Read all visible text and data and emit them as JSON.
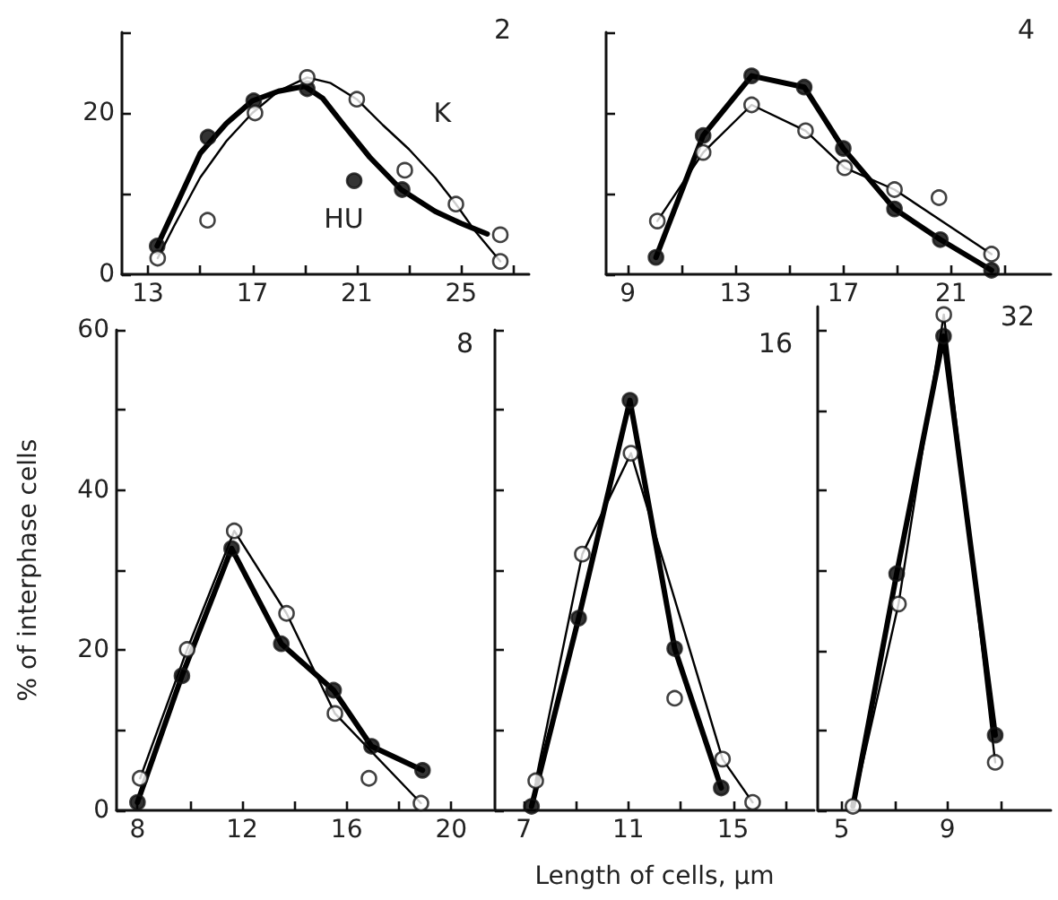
{
  "chart_data": [
    {
      "type": "scatter",
      "title": "2",
      "xlim": [
        12,
        27.6
      ],
      "xticks": [
        13,
        {
          "value": 15,
          "label": null
        },
        17,
        {
          "value": 19,
          "label": null
        },
        21,
        {
          "value": 23,
          "label": null
        },
        25,
        {
          "value": 27,
          "label": null
        }
      ],
      "ylim": [
        0,
        30
      ],
      "yticks": [
        0,
        {
          "value": 10,
          "label": null
        },
        20,
        {
          "value": 30,
          "label": null
        }
      ],
      "series": [
        {
          "name": "HU",
          "type": "line",
          "marker": "none",
          "color": "#000000",
          "x": [
            13.35,
            14,
            15,
            16,
            17,
            18,
            19,
            19.7,
            20.5,
            21.5,
            22.7,
            24,
            25,
            26
          ],
          "values": [
            3.5,
            8,
            15,
            18.7,
            21.5,
            22.7,
            23.3,
            21.8,
            18.5,
            14.5,
            10.5,
            7.8,
            6.3,
            5
          ]
        },
        {
          "name": "K",
          "type": "line",
          "marker": "none",
          "color": "#000000",
          "x": [
            13.37,
            14,
            15,
            16,
            17,
            18,
            19.1,
            20,
            21,
            22,
            23,
            24,
            24.8,
            25.5,
            26.5
          ],
          "values": [
            2,
            6,
            12,
            16.5,
            20,
            22.7,
            24.4,
            23.7,
            21.7,
            18.5,
            15.5,
            12,
            8.7,
            5.5,
            1.6
          ]
        },
        {
          "marker": "circle",
          "color": "#000000",
          "x": [
            13.35,
            15.3,
            17.05,
            19.1,
            20.9,
            22.74
          ],
          "values": [
            3.5,
            17,
            21.5,
            23,
            11.6,
            10.5
          ]
        },
        {
          "marker": "circle",
          "color": "#ffffff",
          "x": [
            13.37,
            15.28,
            17.1,
            19.1,
            21,
            22.84,
            24.8,
            26.5,
            26.5
          ],
          "values": [
            2,
            6.7,
            20,
            24.4,
            21.7,
            12.9,
            8.7,
            4.9,
            1.6
          ]
        }
      ]
    },
    {
      "type": "scatter",
      "title": "4",
      "tick_labels": "x",
      "xlim": [
        8.2,
        24.7
      ],
      "xticks": [
        9,
        {
          "value": 11,
          "label": null
        },
        13,
        {
          "value": 15,
          "label": null
        },
        17,
        {
          "value": 19,
          "label": null
        },
        21,
        {
          "value": 23,
          "label": null
        }
      ],
      "ylim": [
        0,
        30
      ],
      "yticks": [
        0,
        10,
        20,
        30
      ],
      "series": [
        {
          "type": "line",
          "marker": "none",
          "color": "#000000",
          "x": [
            10.05,
            11.8,
            13.6,
            15.55,
            17,
            18.9,
            20.6,
            22.5
          ],
          "values": [
            2.1,
            17.2,
            24.6,
            23.2,
            15.6,
            8.1,
            4.3,
            0.5
          ]
        },
        {
          "type": "line",
          "marker": "none",
          "color": "#000000",
          "x": [
            10.1,
            11.8,
            13.6,
            15.6,
            17.05,
            18.9,
            22.5
          ],
          "values": [
            6.6,
            15.1,
            21,
            17.8,
            13.2,
            10.5,
            2.5
          ]
        },
        {
          "marker": "circle",
          "color": "#000000",
          "x": [
            10.05,
            11.8,
            13.6,
            15.55,
            17,
            18.9,
            20.6,
            22.5
          ],
          "values": [
            2.1,
            17.2,
            24.6,
            23.2,
            15.6,
            8.1,
            4.3,
            0.5
          ]
        },
        {
          "marker": "circle",
          "color": "#ffffff",
          "x": [
            10.1,
            11.8,
            13.6,
            15.6,
            17.05,
            18.9,
            20.55,
            22.5
          ],
          "values": [
            6.6,
            15.1,
            21,
            17.8,
            13.2,
            10.5,
            9.5,
            2.5
          ]
        }
      ]
    },
    {
      "type": "scatter",
      "title": "8",
      "ylabel": "% of interphase cells",
      "xlim": [
        7.2,
        21.6
      ],
      "xticks": [
        8,
        {
          "value": 10,
          "label": null
        },
        12,
        {
          "value": 14,
          "label": null
        },
        16,
        {
          "value": 18,
          "label": null
        },
        20
      ],
      "ylim": [
        0,
        60
      ],
      "yticks": [
        0,
        {
          "value": 10,
          "label": null
        },
        20,
        {
          "value": 30,
          "label": null
        },
        40,
        {
          "value": 50,
          "label": null
        },
        60
      ],
      "series": [
        {
          "type": "line",
          "marker": "none",
          "color": "#000000",
          "x": [
            8,
            9.7,
            11.6,
            13.5,
            15.5,
            16.95,
            18.9
          ],
          "values": [
            1,
            16.8,
            32.7,
            20.8,
            15,
            8,
            5
          ]
        },
        {
          "type": "line",
          "marker": "none",
          "color": "#000000",
          "x": [
            8.1,
            9.9,
            11.7,
            13.7,
            15.55,
            18.84
          ],
          "values": [
            4,
            20.1,
            34.9,
            24.6,
            12.1,
            0.9
          ]
        },
        {
          "marker": "circle",
          "color": "#000000",
          "x": [
            8,
            9.7,
            11.6,
            13.5,
            15.5,
            16.95,
            18.9
          ],
          "values": [
            1,
            16.8,
            32.7,
            20.8,
            15,
            8,
            5
          ]
        },
        {
          "marker": "circle",
          "color": "#ffffff",
          "x": [
            8.1,
            9.9,
            11.7,
            13.7,
            15.55,
            16.85,
            18.84
          ],
          "values": [
            4,
            20.1,
            34.9,
            24.6,
            12.1,
            4,
            0.9
          ]
        }
      ]
    },
    {
      "type": "scatter",
      "title": "16",
      "xlabel": "Length of cells, μm",
      "tick_labels": "x",
      "xlim": [
        5.9,
        18.1
      ],
      "xticks": [
        7,
        {
          "value": 9,
          "label": null
        },
        11,
        {
          "value": 13,
          "label": null
        },
        15,
        {
          "value": 17,
          "label": null
        }
      ],
      "ylim": [
        0,
        60
      ],
      "yticks": [
        0,
        10,
        20,
        30,
        40,
        50,
        60
      ],
      "series": [
        {
          "type": "line",
          "marker": "none",
          "color": "#000000",
          "x": [
            7.3,
            9.1,
            11.06,
            12.77,
            14.55
          ],
          "values": [
            0.5,
            24,
            51.2,
            20.2,
            2.8
          ]
        },
        {
          "type": "line",
          "marker": "none",
          "color": "#000000",
          "x": [
            7.46,
            9.24,
            11.1,
            14.6,
            15.75
          ],
          "values": [
            3.7,
            32,
            44.6,
            6.4,
            1
          ]
        },
        {
          "marker": "circle",
          "color": "#000000",
          "x": [
            7.3,
            9.1,
            11.06,
            12.77,
            14.55
          ],
          "values": [
            0.5,
            24,
            51.2,
            20.2,
            2.8
          ]
        },
        {
          "marker": "circle",
          "color": "#ffffff",
          "x": [
            7.46,
            9.24,
            11.1,
            12.77,
            14.6,
            15.75
          ],
          "values": [
            3.7,
            32,
            44.6,
            14,
            6.4,
            1
          ]
        }
      ]
    },
    {
      "type": "scatter",
      "title": "32",
      "tick_labels": "x",
      "xlim": [
        4.1,
        12.9
      ],
      "xticks": [
        5,
        {
          "value": 7,
          "label": null
        },
        9,
        {
          "value": 11,
          "label": null
        }
      ],
      "ylim": [
        0,
        63
      ],
      "yticks": [
        0,
        10,
        20,
        30,
        40,
        50,
        60
      ],
      "series": [
        {
          "type": "line",
          "marker": "none",
          "color": "#000000",
          "x": [
            5.43,
            7.08,
            8.85,
            10.8
          ],
          "values": [
            0.5,
            29.6,
            59.3,
            9.4
          ]
        },
        {
          "type": "line",
          "marker": "none",
          "color": "#000000",
          "x": [
            5.43,
            7.15,
            8.86,
            10.8
          ],
          "values": [
            0.5,
            25.8,
            62,
            6
          ]
        },
        {
          "marker": "circle",
          "color": "#000000",
          "x": [
            7.08,
            8.85,
            10.8
          ],
          "values": [
            29.6,
            59.3,
            9.4
          ]
        },
        {
          "marker": "circle",
          "color": "#ffffff",
          "x": [
            5.43,
            7.15,
            8.86,
            10.8
          ],
          "values": [
            0.5,
            25.8,
            62,
            6
          ]
        }
      ]
    }
  ]
}
